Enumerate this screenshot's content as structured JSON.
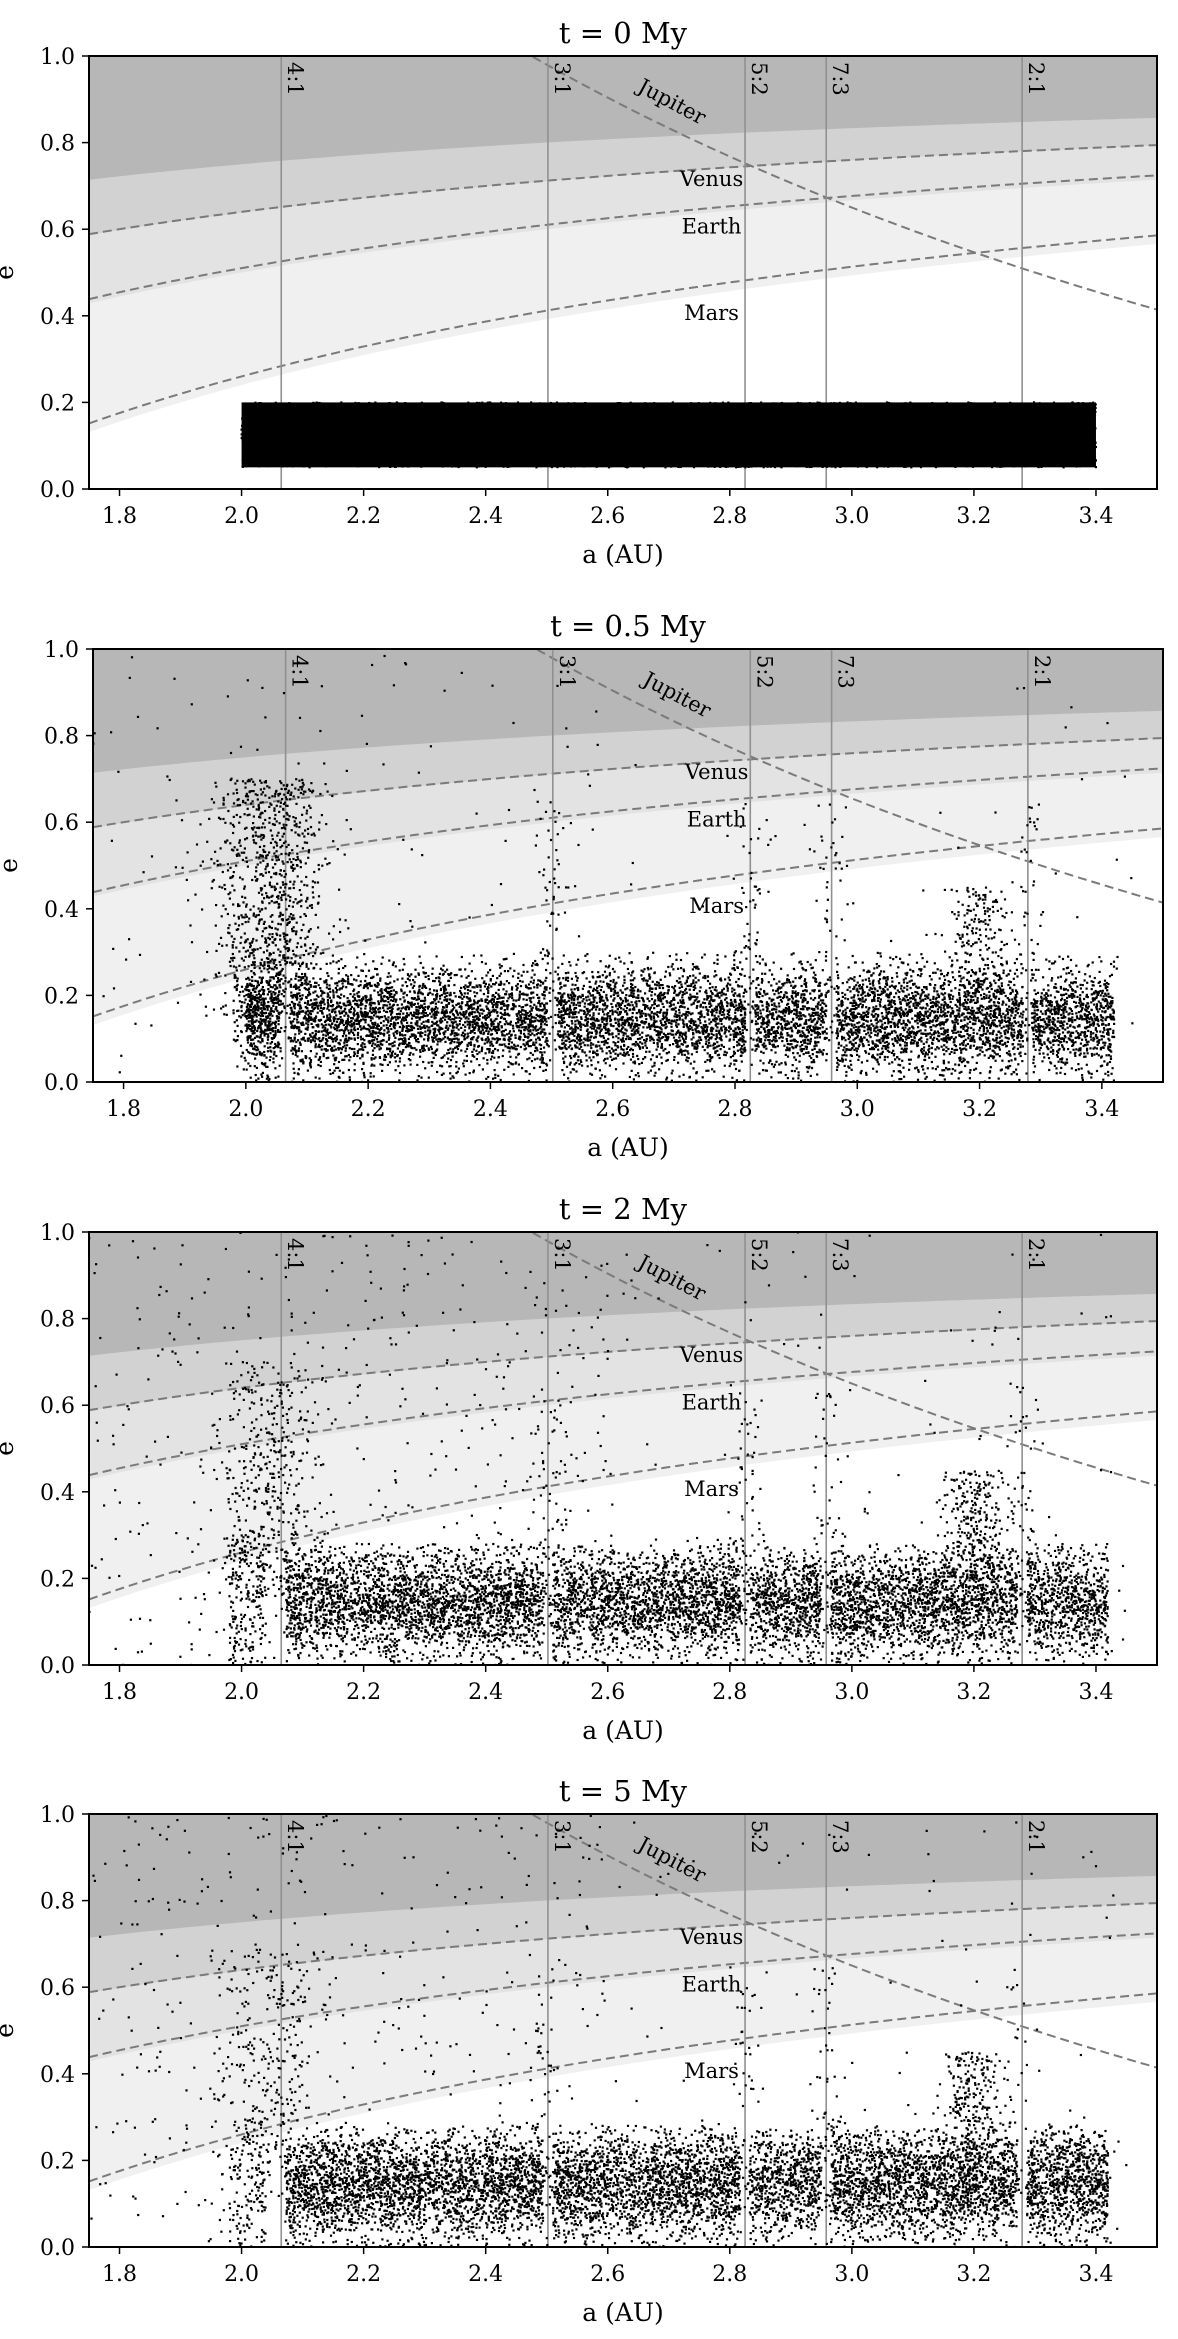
{
  "figure": {
    "x_axis_label": "a (AU)",
    "y_axis_label": "e",
    "x_ticks": [
      "1.8",
      "2.0",
      "2.2",
      "2.4",
      "2.6",
      "2.8",
      "3.0",
      "3.2",
      "3.4"
    ],
    "y_ticks": [
      "0.0",
      "0.2",
      "0.4",
      "0.6",
      "0.8",
      "1.0"
    ],
    "colors": {
      "jupiter_region": "#b7b7b7",
      "venus_region": "#d2d2d2",
      "earth_region": "#e3e3e3",
      "mars_region": "#f0f0f0",
      "curve": "#7a7a7a",
      "resonance_line": "#909090",
      "points": "#000000"
    }
  },
  "chart_data": [
    {
      "type": "scatter",
      "title": "t = 0 My",
      "xlabel": "a (AU)",
      "ylabel": "e",
      "xlim": [
        1.75,
        3.5
      ],
      "ylim": [
        0,
        1
      ],
      "resonances": [
        {
          "label": "4:1",
          "a": 2.065
        },
        {
          "label": "3:1",
          "a": 2.502
        },
        {
          "label": "5:2",
          "a": 2.825
        },
        {
          "label": "7:3",
          "a": 2.958
        },
        {
          "label": "2:1",
          "a": 3.279
        }
      ],
      "curves": [
        {
          "label": "Jupiter"
        },
        {
          "label": "Venus"
        },
        {
          "label": "Earth"
        },
        {
          "label": "Mars"
        }
      ],
      "population": {
        "a_range": [
          2.0,
          3.4
        ],
        "e_range": [
          0.05,
          0.2
        ],
        "description": "uniform initial distribution"
      }
    },
    {
      "type": "scatter",
      "title": "t = 0.5 My",
      "xlabel": "a (AU)",
      "ylabel": "e",
      "xlim": [
        1.75,
        3.5
      ],
      "ylim": [
        0,
        1
      ],
      "resonances": [
        {
          "label": "4:1",
          "a": 2.065
        },
        {
          "label": "3:1",
          "a": 2.502
        },
        {
          "label": "5:2",
          "a": 2.825
        },
        {
          "label": "7:3",
          "a": 2.958
        },
        {
          "label": "2:1",
          "a": 3.279
        }
      ],
      "curves": [
        {
          "label": "Jupiter"
        },
        {
          "label": "Venus"
        },
        {
          "label": "Earth"
        },
        {
          "label": "Mars"
        }
      ],
      "population": {
        "a_range": [
          2.0,
          3.42
        ],
        "e_core_range": [
          0.0,
          0.3
        ],
        "e_scatter_max": 1.0
      }
    },
    {
      "type": "scatter",
      "title": "t = 2 My",
      "xlabel": "a (AU)",
      "ylabel": "e",
      "xlim": [
        1.75,
        3.5
      ],
      "ylim": [
        0,
        1
      ],
      "resonances": [
        {
          "label": "4:1",
          "a": 2.065
        },
        {
          "label": "3:1",
          "a": 2.502
        },
        {
          "label": "5:2",
          "a": 2.825
        },
        {
          "label": "7:3",
          "a": 2.958
        },
        {
          "label": "2:1",
          "a": 3.279
        }
      ],
      "curves": [
        {
          "label": "Jupiter"
        },
        {
          "label": "Venus"
        },
        {
          "label": "Earth"
        },
        {
          "label": "Mars"
        }
      ],
      "population": {
        "a_range": [
          1.75,
          3.42
        ],
        "e_core_range": [
          0.0,
          0.28
        ],
        "e_scatter_max": 1.0
      }
    },
    {
      "type": "scatter",
      "title": "t = 5 My",
      "xlabel": "a (AU)",
      "ylabel": "e",
      "xlim": [
        1.75,
        3.5
      ],
      "ylim": [
        0,
        1
      ],
      "resonances": [
        {
          "label": "4:1",
          "a": 2.065
        },
        {
          "label": "3:1",
          "a": 2.502
        },
        {
          "label": "5:2",
          "a": 2.825
        },
        {
          "label": "7:3",
          "a": 2.958
        },
        {
          "label": "2:1",
          "a": 3.279
        }
      ],
      "curves": [
        {
          "label": "Jupiter"
        },
        {
          "label": "Venus"
        },
        {
          "label": "Earth"
        },
        {
          "label": "Mars"
        }
      ],
      "population": {
        "a_range": [
          1.75,
          3.42
        ],
        "e_core_range": [
          0.0,
          0.28
        ],
        "e_scatter_max": 1.0
      }
    }
  ]
}
